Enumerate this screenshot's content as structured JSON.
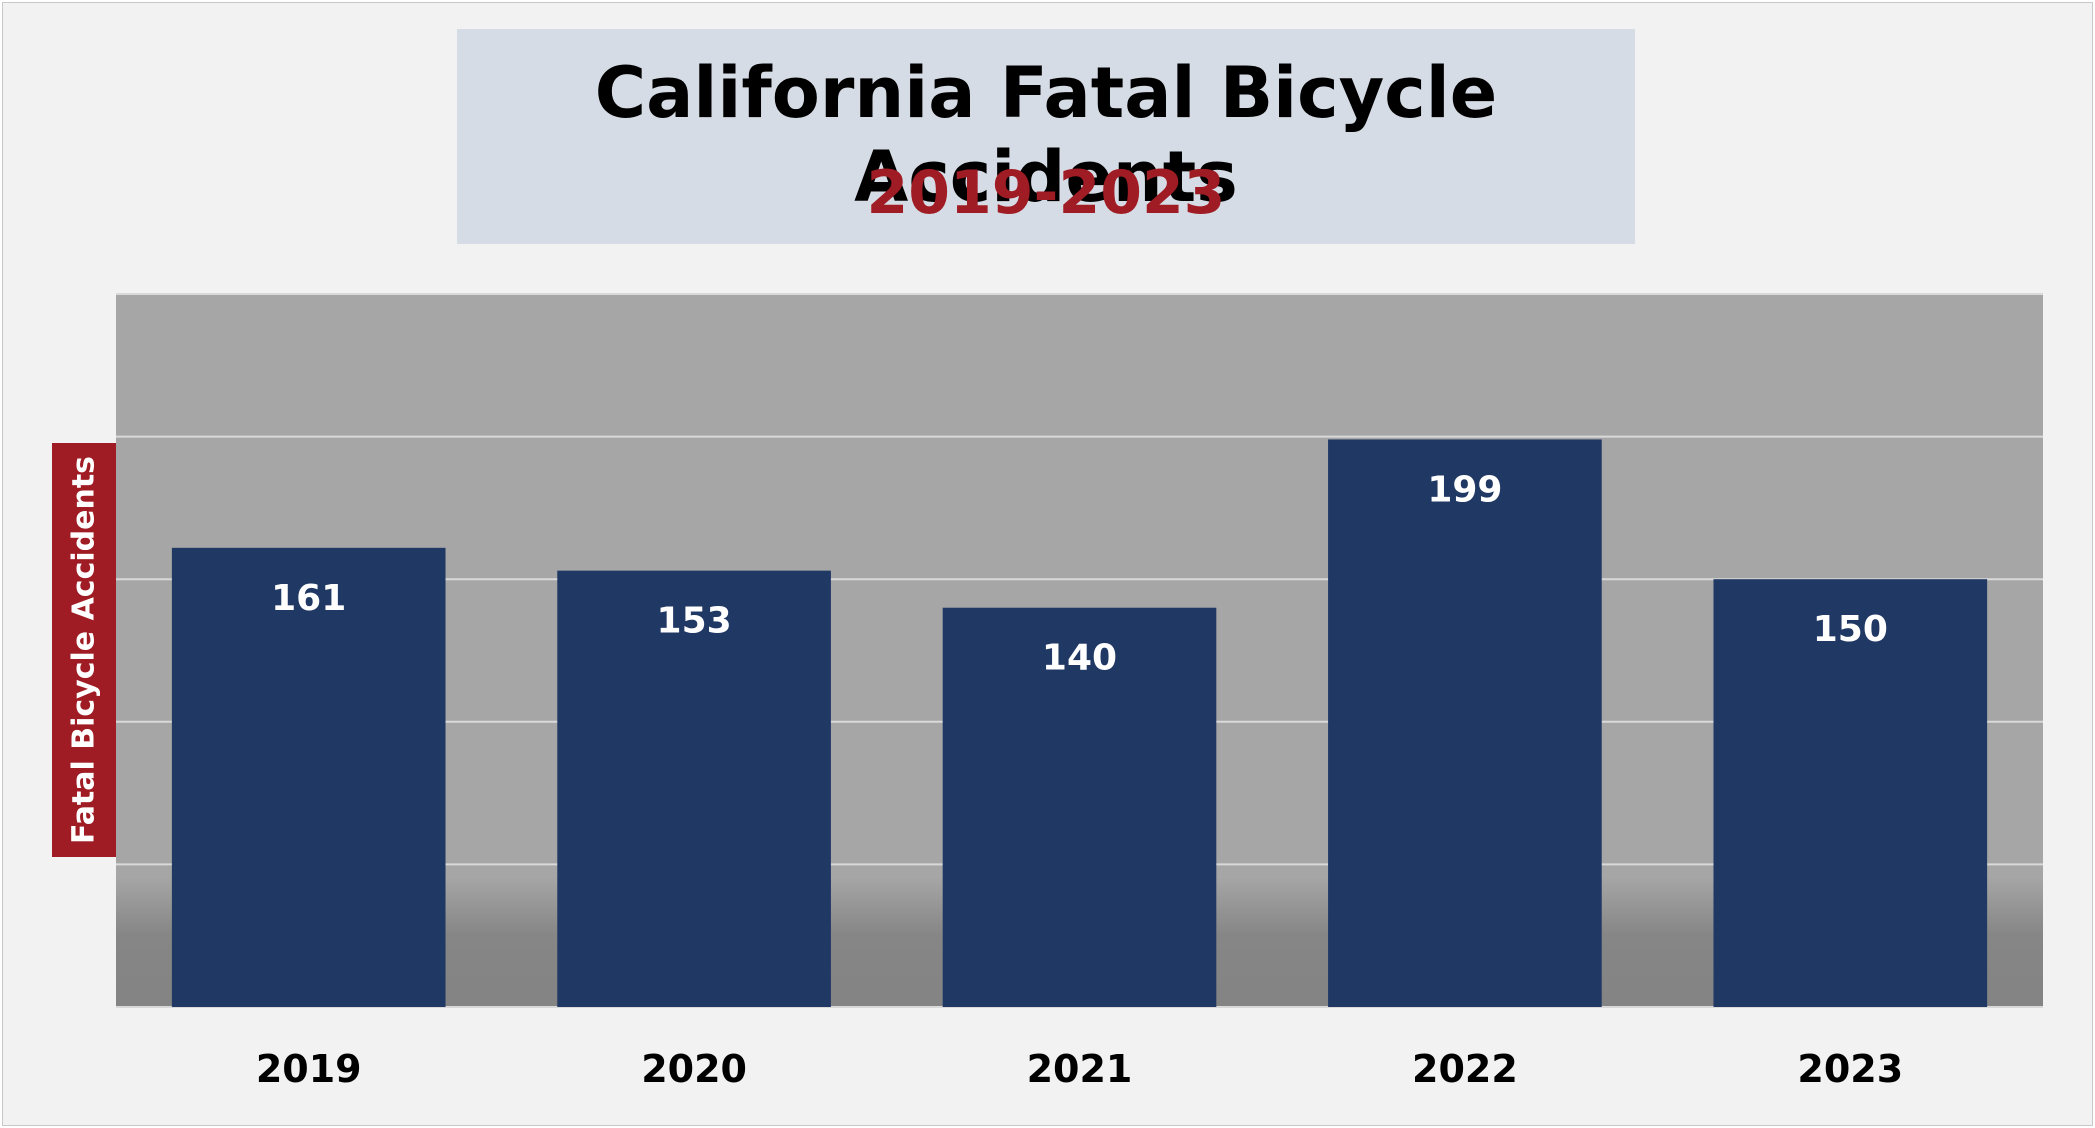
{
  "chart_data": {
    "type": "bar",
    "title": "California Fatal Bicycle Accidents",
    "subtitle": "2019-2023",
    "xlabel": "",
    "ylabel": "Fatal Bicycle Accidents",
    "categories": [
      "2019",
      "2020",
      "2021",
      "2022",
      "2023"
    ],
    "values": [
      161,
      153,
      140,
      199,
      150
    ],
    "ylim": [
      0,
      250
    ],
    "ytick_step": 50,
    "grid": true,
    "legend": "none",
    "data_labels": [
      "161",
      "153",
      "140",
      "199",
      "150"
    ]
  },
  "colors": {
    "bar": "#203864",
    "plot_background": "#a6a6a6",
    "gridline": "#d9d9d9",
    "title_box": "#d6dce5",
    "subtitle": "#a01c24",
    "ylabel_box": "#a01c24",
    "data_label": "#ffffff",
    "tick_label": "#000000"
  }
}
